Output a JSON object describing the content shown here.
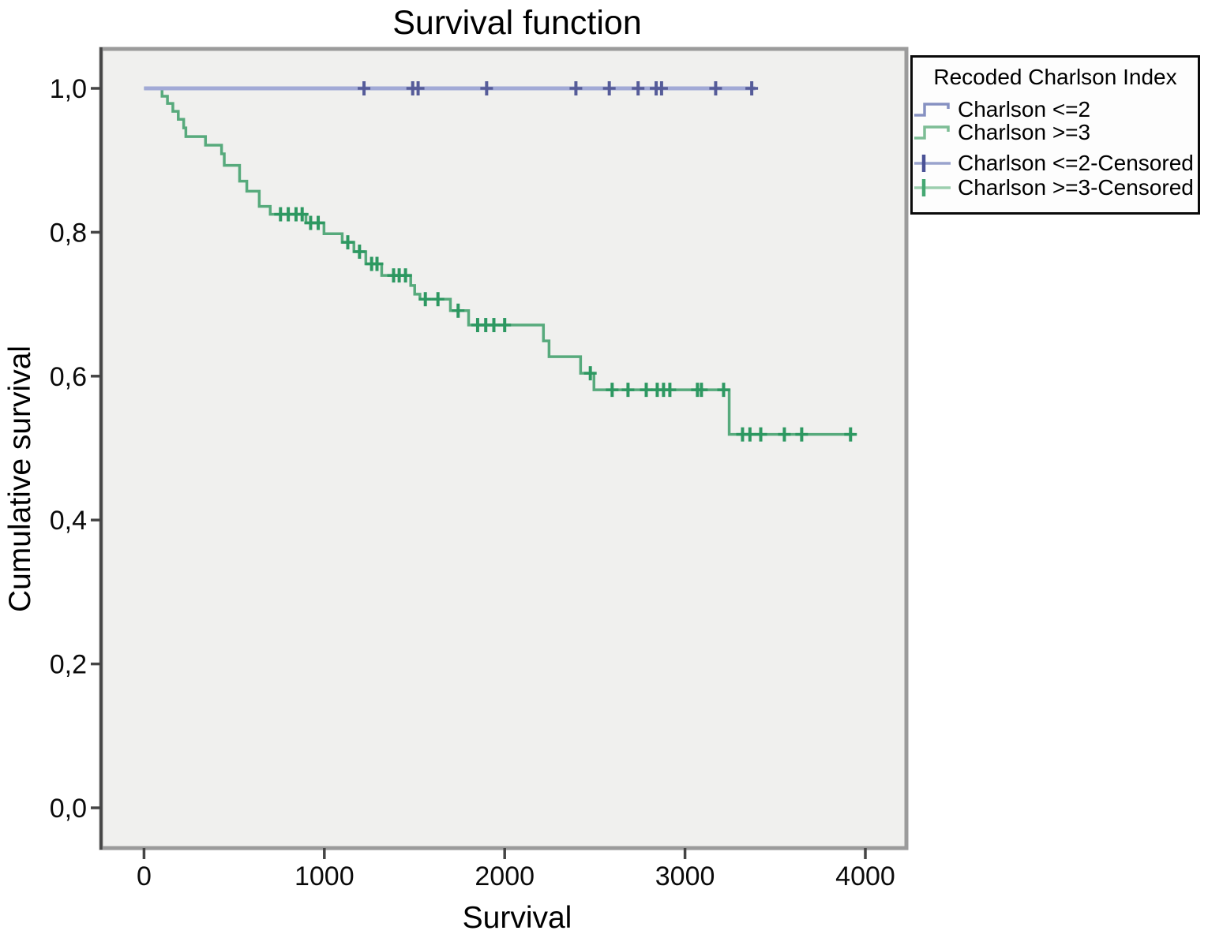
{
  "title": "Survival function",
  "axes": {
    "x_label": "Survival",
    "y_label": "Cumulative survival"
  },
  "legend": {
    "title": "Recoded Charlson Index",
    "entries": [
      {
        "label": "Charlson <=2",
        "symbol": "step-line",
        "symbol_color": "#8691c2"
      },
      {
        "label": "Charlson >=3",
        "symbol": "step-line",
        "symbol_color": "#7dbd95"
      },
      {
        "label": "Charlson <=2-Censored",
        "symbol": "plus-cross",
        "symbol_color": "#9aa3cd",
        "cross_color": "#4a5296"
      },
      {
        "label": "Charlson >=3-Censored",
        "symbol": "plus-cross",
        "symbol_color": "#9ccfae",
        "cross_color": "#45a873"
      }
    ]
  },
  "colors": {
    "plot_bg": "#f0f0ee",
    "frame": "#9b9b9b",
    "axis": "#454545",
    "tick_text": "#0a0a0a"
  },
  "chart_data": {
    "type": "line",
    "subtype": "kaplan-meier-step",
    "title": "Survival function",
    "xlabel": "Survival",
    "ylabel": "Cumulative survival",
    "grid": false,
    "legend_position": "outside-top-right",
    "xlim": [
      0,
      4228
    ],
    "ylim": [
      -0.055,
      1.056
    ],
    "x_ticks": [
      0,
      1000,
      2000,
      3000,
      4000
    ],
    "x_tick_labels": [
      "0",
      "1000",
      "2000",
      "3000",
      "4000"
    ],
    "y_ticks": [
      1.0,
      0.8,
      0.6,
      0.4,
      0.2,
      0.0
    ],
    "y_tick_labels": [
      "1,0",
      "0,8",
      "0,6",
      "0,4",
      "0,2",
      "0,0"
    ],
    "series": [
      {
        "id": "charlson-le2",
        "name": "Charlson <=2",
        "color": "#a2aad6",
        "censor_color": "#565c99",
        "line_width": 5,
        "steps": [
          [
            0,
            1.0
          ]
        ],
        "end_x": 3390,
        "censored": [
          [
            1220,
            1.0
          ],
          [
            1490,
            1.0
          ],
          [
            1520,
            1.0
          ],
          [
            1900,
            1.0
          ],
          [
            2395,
            1.0
          ],
          [
            2580,
            1.0
          ],
          [
            2740,
            1.0
          ],
          [
            2840,
            1.0
          ],
          [
            2870,
            1.0
          ],
          [
            3170,
            1.0
          ],
          [
            3370,
            1.0
          ]
        ]
      },
      {
        "id": "charlson-ge3",
        "name": "Charlson >=3",
        "color": "#57aa7c",
        "censor_color": "#2d9861",
        "line_width": 3.5,
        "steps": [
          [
            0,
            1.0
          ],
          [
            100,
            0.989
          ],
          [
            130,
            0.979
          ],
          [
            160,
            0.968
          ],
          [
            190,
            0.957
          ],
          [
            220,
            0.945
          ],
          [
            232,
            0.933
          ],
          [
            341,
            0.921
          ],
          [
            430,
            0.909
          ],
          [
            445,
            0.893
          ],
          [
            530,
            0.871
          ],
          [
            570,
            0.857
          ],
          [
            639,
            0.836
          ],
          [
            700,
            0.825
          ],
          [
            898,
            0.813
          ],
          [
            998,
            0.798
          ],
          [
            1099,
            0.786
          ],
          [
            1164,
            0.773
          ],
          [
            1230,
            0.756
          ],
          [
            1318,
            0.74
          ],
          [
            1479,
            0.726
          ],
          [
            1501,
            0.714
          ],
          [
            1530,
            0.707
          ],
          [
            1699,
            0.691
          ],
          [
            1800,
            0.671
          ],
          [
            2215,
            0.649
          ],
          [
            2246,
            0.627
          ],
          [
            2421,
            0.604
          ],
          [
            2495,
            0.581
          ],
          [
            3245,
            0.519
          ]
        ],
        "end_x": 3940,
        "censored": [
          [
            757,
            0.825
          ],
          [
            800,
            0.825
          ],
          [
            843,
            0.825
          ],
          [
            877,
            0.825
          ],
          [
            924,
            0.813
          ],
          [
            966,
            0.813
          ],
          [
            1130,
            0.786
          ],
          [
            1195,
            0.773
          ],
          [
            1262,
            0.756
          ],
          [
            1292,
            0.756
          ],
          [
            1384,
            0.74
          ],
          [
            1415,
            0.74
          ],
          [
            1450,
            0.74
          ],
          [
            1560,
            0.707
          ],
          [
            1630,
            0.707
          ],
          [
            1742,
            0.691
          ],
          [
            1850,
            0.671
          ],
          [
            1895,
            0.671
          ],
          [
            1940,
            0.671
          ],
          [
            2000,
            0.671
          ],
          [
            2475,
            0.604
          ],
          [
            2596,
            0.581
          ],
          [
            2684,
            0.581
          ],
          [
            2785,
            0.581
          ],
          [
            2846,
            0.581
          ],
          [
            2881,
            0.581
          ],
          [
            2916,
            0.581
          ],
          [
            3069,
            0.581
          ],
          [
            3091,
            0.581
          ],
          [
            3214,
            0.581
          ],
          [
            3319,
            0.519
          ],
          [
            3360,
            0.519
          ],
          [
            3420,
            0.519
          ],
          [
            3551,
            0.519
          ],
          [
            3647,
            0.519
          ],
          [
            3918,
            0.519
          ]
        ]
      }
    ]
  }
}
